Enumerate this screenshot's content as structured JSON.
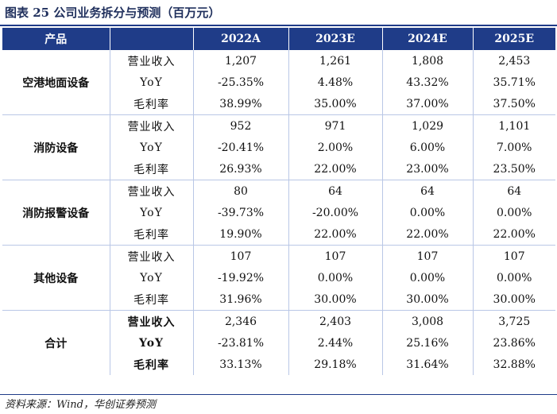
{
  "title": "图表 25  公司业务拆分与预测（百万元）",
  "headers": [
    "产品",
    "",
    "2022A",
    "2023E",
    "2024E",
    "2025E"
  ],
  "groups": [
    {
      "name": "空港地面设备",
      "rows": [
        {
          "metric": "营业收入",
          "values": [
            "1,207",
            "1,261",
            "1,808",
            "2,453"
          ]
        },
        {
          "metric": "YoY",
          "values": [
            "-25.35%",
            "4.48%",
            "43.32%",
            "35.71%"
          ]
        },
        {
          "metric": "毛利率",
          "values": [
            "38.99%",
            "35.00%",
            "37.00%",
            "37.50%"
          ]
        }
      ]
    },
    {
      "name": "消防设备",
      "rows": [
        {
          "metric": "营业收入",
          "values": [
            "952",
            "971",
            "1,029",
            "1,101"
          ]
        },
        {
          "metric": "YoY",
          "values": [
            "-20.41%",
            "2.00%",
            "6.00%",
            "7.00%"
          ]
        },
        {
          "metric": "毛利率",
          "values": [
            "26.93%",
            "22.00%",
            "23.00%",
            "23.50%"
          ]
        }
      ]
    },
    {
      "name": "消防报警设备",
      "rows": [
        {
          "metric": "营业收入",
          "values": [
            "80",
            "64",
            "64",
            "64"
          ]
        },
        {
          "metric": "YoY",
          "values": [
            "-39.73%",
            "-20.00%",
            "0.00%",
            "0.00%"
          ]
        },
        {
          "metric": "毛利率",
          "values": [
            "19.90%",
            "22.00%",
            "22.00%",
            "22.00%"
          ]
        }
      ]
    },
    {
      "name": "其他设备",
      "rows": [
        {
          "metric": "营业收入",
          "values": [
            "107",
            "107",
            "107",
            "107"
          ]
        },
        {
          "metric": "YoY",
          "values": [
            "-19.92%",
            "0.00%",
            "0.00%",
            "0.00%"
          ]
        },
        {
          "metric": "毛利率",
          "values": [
            "31.96%",
            "30.00%",
            "30.00%",
            "30.00%"
          ]
        }
      ]
    },
    {
      "name": "合计",
      "rows": [
        {
          "metric": "营业收入",
          "values": [
            "2,346",
            "2,403",
            "3,008",
            "3,725"
          ]
        },
        {
          "metric": "YoY",
          "values": [
            "-23.81%",
            "2.44%",
            "25.16%",
            "23.86%"
          ]
        },
        {
          "metric": "毛利率",
          "values": [
            "33.13%",
            "29.18%",
            "31.64%",
            "32.88%"
          ]
        }
      ]
    }
  ],
  "source": "资料来源：Wind，华创证券预测",
  "colors": {
    "header_bg": "#1f3c88",
    "header_text": "#ffffff",
    "grid": "#b9c7e6"
  }
}
